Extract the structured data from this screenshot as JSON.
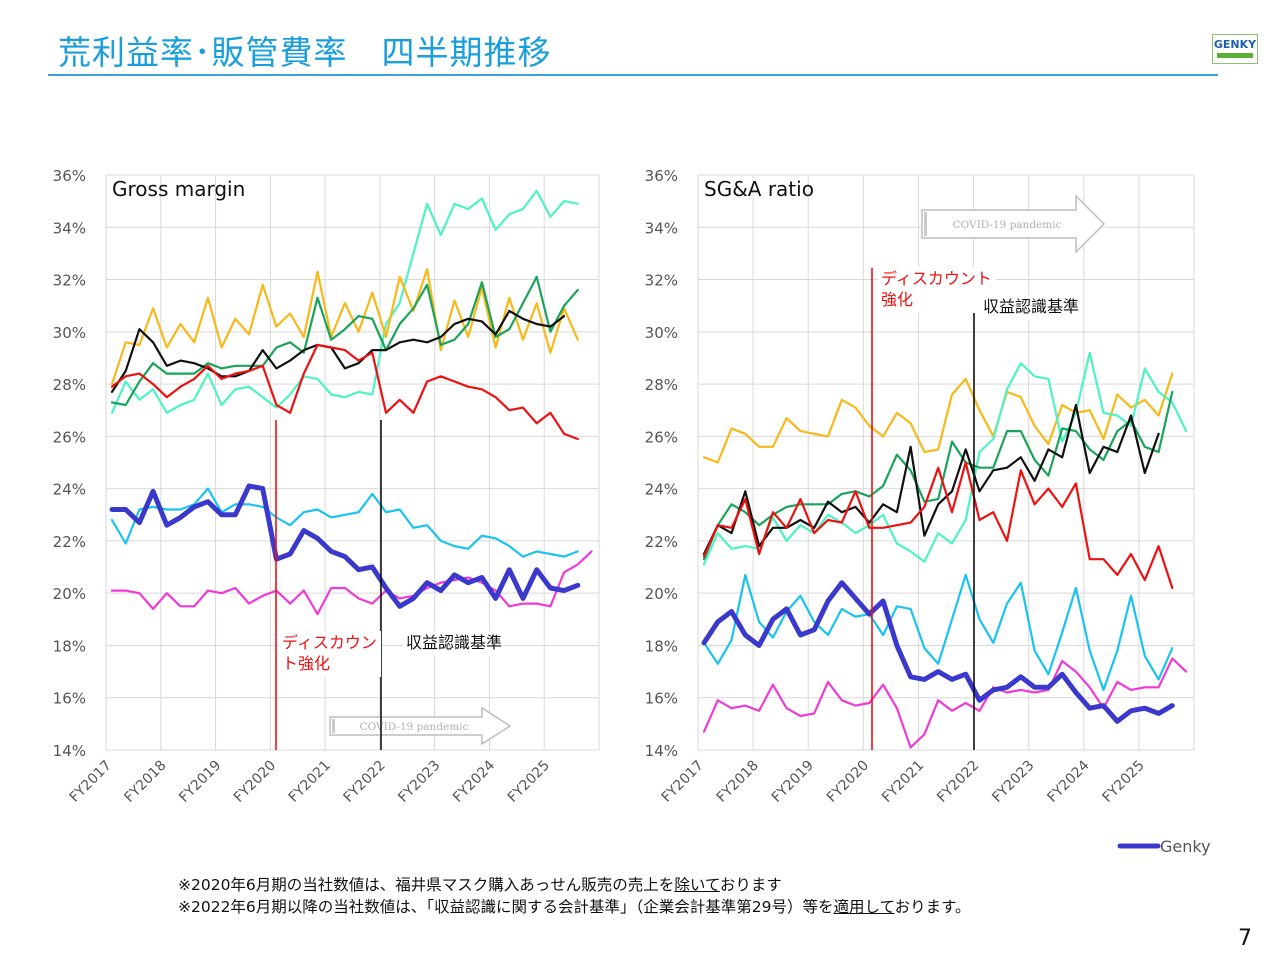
{
  "header": {
    "title": "荒利益率･販管費率　四半期推移",
    "logo_text": "GENKY"
  },
  "footer": {
    "note1": {
      "pre": "※2020年6月期の当社数値は、福井県マスク購入あっせん販売の売上を",
      "u": "除いて",
      "post": "おります"
    },
    "note2": {
      "pre": "※2022年6月期以降の当社数値は、「収益認識に関する会計基準」（企業会計基準第29号）等を",
      "u": "適用して",
      "post": "おります。"
    },
    "page_number": "7"
  },
  "legend": {
    "label": "Genky",
    "color": "#3a39cc"
  },
  "colors": {
    "genky": "#3a39cc",
    "cyan": "#18c3f2",
    "magenta": "#f03ad8",
    "red": "#ee1111",
    "black": "#111111",
    "green": "#19a45a",
    "yellow": "#f8b818",
    "mint": "#4df3c4"
  },
  "chart_data": [
    {
      "type": "line",
      "title": "Gross margin",
      "x_tick_labels": [
        "FY2017",
        "FY2018",
        "FY2019",
        "FY2020",
        "FY2021",
        "FY2022",
        "FY2023",
        "FY2024",
        "FY2025"
      ],
      "y_tick_labels": [
        "14%",
        "16%",
        "18%",
        "20%",
        "22%",
        "24%",
        "26%",
        "28%",
        "30%",
        "32%",
        "34%",
        "36%"
      ],
      "ylim": [
        14,
        36
      ],
      "annotations": [
        {
          "text": "ディスカウン\nト強化",
          "color": "#ee1111"
        },
        {
          "text": "収益認識基準",
          "color": "#111111"
        },
        {
          "text": "COVID-19 pandemic",
          "color": "#b0b0b0"
        }
      ],
      "series": [
        {
          "color_key": "mint",
          "values": [
            26.9,
            28.1,
            27.4,
            27.8,
            26.9,
            27.2,
            27.4,
            28.4,
            27.2,
            27.8,
            27.9,
            27.5,
            27.1,
            27.6,
            28.3,
            28.2,
            27.6,
            27.5,
            27.7,
            27.6,
            30.3,
            31.1,
            33.0,
            34.9,
            33.7,
            34.9,
            34.7,
            35.1,
            33.9,
            34.5,
            34.7,
            35.4,
            34.4,
            35.0,
            34.9
          ]
        },
        {
          "color_key": "yellow",
          "values": [
            28.0,
            29.6,
            29.5,
            30.9,
            29.4,
            30.3,
            29.6,
            31.3,
            29.4,
            30.5,
            29.9,
            31.8,
            30.2,
            30.7,
            29.8,
            32.3,
            29.8,
            31.1,
            30.0,
            31.5,
            29.8,
            32.1,
            30.8,
            32.4,
            29.3,
            31.2,
            29.8,
            31.7,
            29.4,
            31.3,
            29.7,
            31.1,
            29.2,
            30.9,
            29.7
          ]
        },
        {
          "color_key": "green",
          "values": [
            27.3,
            27.2,
            28.1,
            28.8,
            28.4,
            28.4,
            28.4,
            28.8,
            28.6,
            28.7,
            28.7,
            28.7,
            29.4,
            29.6,
            29.2,
            31.3,
            29.7,
            30.1,
            30.6,
            30.5,
            29.3,
            30.3,
            30.9,
            31.8,
            29.5,
            29.7,
            30.3,
            31.9,
            29.8,
            30.1,
            31.1,
            32.1,
            30.0,
            31.0,
            31.6
          ]
        },
        {
          "color_key": "black",
          "values": [
            27.7,
            28.5,
            30.1,
            29.6,
            28.7,
            28.9,
            28.8,
            28.6,
            28.3,
            28.3,
            28.5,
            29.3,
            28.6,
            28.9,
            29.3,
            29.5,
            29.4,
            28.6,
            28.8,
            29.3,
            29.3,
            29.6,
            29.7,
            29.6,
            29.8,
            30.3,
            30.5,
            30.4,
            29.9,
            30.8,
            30.5,
            30.3,
            30.2,
            30.6
          ]
        },
        {
          "color_key": "red",
          "values": [
            27.9,
            28.3,
            28.4,
            28.0,
            27.5,
            27.9,
            28.2,
            28.7,
            28.2,
            28.4,
            28.5,
            28.7,
            27.2,
            26.9,
            28.4,
            29.5,
            29.4,
            29.3,
            28.9,
            29.2,
            26.9,
            27.4,
            26.9,
            28.1,
            28.3,
            28.1,
            27.9,
            27.8,
            27.5,
            27.0,
            27.1,
            26.5,
            26.9,
            26.1,
            25.9
          ]
        },
        {
          "color_key": "cyan",
          "values": [
            22.8,
            21.9,
            23.2,
            23.3,
            23.2,
            23.2,
            23.4,
            24.0,
            23.1,
            23.4,
            23.4,
            23.3,
            22.9,
            22.6,
            23.1,
            23.2,
            22.9,
            23.0,
            23.1,
            23.8,
            23.1,
            23.2,
            22.5,
            22.6,
            22.0,
            21.8,
            21.7,
            22.2,
            22.1,
            21.8,
            21.4,
            21.6,
            21.5,
            21.4,
            21.6
          ]
        },
        {
          "color_key": "magenta",
          "values": [
            20.1,
            20.1,
            20.0,
            19.4,
            20.0,
            19.5,
            19.5,
            20.1,
            20.0,
            20.2,
            19.6,
            19.9,
            20.1,
            19.6,
            20.1,
            19.2,
            20.2,
            20.2,
            19.8,
            19.6,
            20.1,
            19.8,
            19.9,
            20.2,
            20.4,
            20.5,
            20.6,
            20.4,
            20.1,
            19.5,
            19.6,
            19.6,
            19.5,
            20.8,
            21.1,
            21.6
          ]
        },
        {
          "color_key": "genky",
          "name_key": "legend",
          "values": [
            23.2,
            23.2,
            22.7,
            23.9,
            22.6,
            22.9,
            23.3,
            23.5,
            23.0,
            23.0,
            24.1,
            24.0,
            21.3,
            21.5,
            22.4,
            22.1,
            21.6,
            21.4,
            20.9,
            21.0,
            20.2,
            19.5,
            19.8,
            20.4,
            20.1,
            20.7,
            20.4,
            20.6,
            19.8,
            20.9,
            19.8,
            20.9,
            20.2,
            20.1,
            20.3
          ]
        }
      ]
    },
    {
      "type": "line",
      "title": "SG&A ratio",
      "x_tick_labels": [
        "FY2017",
        "FY2018",
        "FY2019",
        "FY2020",
        "FY2021",
        "FY2022",
        "FY2023",
        "FY2024",
        "FY2025"
      ],
      "y_tick_labels": [
        "14%",
        "16%",
        "18%",
        "20%",
        "22%",
        "24%",
        "26%",
        "28%",
        "30%",
        "32%",
        "34%",
        "36%"
      ],
      "ylim": [
        14,
        36
      ],
      "annotations": [
        {
          "text": "ディスカウント\n強化",
          "color": "#ee1111"
        },
        {
          "text": "収益認識基準",
          "color": "#111111"
        },
        {
          "text": "COVID-19 pandemic",
          "color": "#b0b0b0"
        }
      ],
      "series": [
        {
          "color_key": "yellow",
          "values": [
            25.2,
            25.0,
            26.3,
            26.1,
            25.6,
            25.6,
            26.7,
            26.2,
            26.1,
            26.0,
            27.4,
            27.1,
            26.4,
            26.0,
            26.9,
            26.5,
            25.4,
            25.5,
            27.6,
            28.2,
            27.0,
            26.0,
            27.7,
            27.5,
            26.4,
            25.7,
            27.2,
            26.9,
            27.0,
            25.9,
            27.6,
            27.1,
            27.4,
            26.8,
            28.4
          ]
        },
        {
          "color_key": "mint",
          "values": [
            21.1,
            22.3,
            21.7,
            21.8,
            21.7,
            22.9,
            22.0,
            22.6,
            22.3,
            23.0,
            22.7,
            22.3,
            22.6,
            23.0,
            21.9,
            21.6,
            21.2,
            22.3,
            21.9,
            22.8,
            25.4,
            25.9,
            27.8,
            28.8,
            28.3,
            28.2,
            25.8,
            26.9,
            29.2,
            26.9,
            26.8,
            26.4,
            28.6,
            27.7,
            27.3,
            26.2
          ]
        },
        {
          "color_key": "green",
          "values": [
            21.3,
            22.6,
            23.4,
            23.1,
            22.6,
            23.0,
            23.3,
            23.4,
            23.4,
            23.4,
            23.8,
            23.9,
            23.7,
            24.1,
            25.3,
            24.7,
            23.5,
            23.6,
            25.8,
            25.0,
            24.8,
            24.8,
            26.2,
            26.2,
            25.1,
            24.5,
            26.3,
            26.2,
            25.5,
            25.1,
            26.2,
            26.6,
            25.6,
            25.4,
            27.7
          ]
        },
        {
          "color_key": "black",
          "values": [
            21.5,
            22.6,
            22.3,
            23.9,
            21.8,
            22.5,
            22.5,
            22.8,
            22.5,
            23.5,
            23.1,
            23.3,
            22.7,
            23.4,
            23.1,
            25.6,
            22.2,
            23.4,
            23.9,
            25.5,
            23.9,
            24.7,
            24.8,
            25.2,
            24.3,
            25.5,
            25.2,
            27.2,
            24.6,
            25.6,
            25.4,
            26.8,
            24.6,
            26.1
          ]
        },
        {
          "color_key": "red",
          "values": [
            21.4,
            22.6,
            22.5,
            23.6,
            21.5,
            23.1,
            22.5,
            23.6,
            22.3,
            22.8,
            22.7,
            23.9,
            22.5,
            22.5,
            22.6,
            22.7,
            23.3,
            24.8,
            23.1,
            25.0,
            22.8,
            23.1,
            22.0,
            24.7,
            23.4,
            24.0,
            23.3,
            24.2,
            21.3,
            21.3,
            20.7,
            21.5,
            20.5,
            21.8,
            20.2
          ]
        },
        {
          "color_key": "cyan",
          "values": [
            18.1,
            17.3,
            18.2,
            20.7,
            18.9,
            18.3,
            19.3,
            19.9,
            18.9,
            18.4,
            19.4,
            19.1,
            19.2,
            18.4,
            19.5,
            19.4,
            17.9,
            17.3,
            19.0,
            20.7,
            19.0,
            18.1,
            19.6,
            20.4,
            17.8,
            16.9,
            18.5,
            20.2,
            17.8,
            16.3,
            17.8,
            19.9,
            17.6,
            16.7,
            17.9
          ]
        },
        {
          "color_key": "magenta",
          "values": [
            14.7,
            15.9,
            15.6,
            15.7,
            15.5,
            16.5,
            15.6,
            15.3,
            15.4,
            16.6,
            15.9,
            15.7,
            15.8,
            16.5,
            15.6,
            14.1,
            14.6,
            15.9,
            15.5,
            15.8,
            15.5,
            16.4,
            16.2,
            16.3,
            16.2,
            16.3,
            17.4,
            17.0,
            16.4,
            15.6,
            16.6,
            16.3,
            16.4,
            16.4,
            17.5,
            17.0
          ]
        },
        {
          "color_key": "genky",
          "name_key": "legend",
          "values": [
            18.1,
            18.9,
            19.3,
            18.4,
            18.0,
            19.0,
            19.4,
            18.4,
            18.6,
            19.7,
            20.4,
            19.8,
            19.2,
            19.7,
            18.0,
            16.8,
            16.7,
            17.0,
            16.7,
            16.9,
            15.9,
            16.3,
            16.4,
            16.8,
            16.4,
            16.4,
            16.9,
            16.2,
            15.6,
            15.7,
            15.1,
            15.5,
            15.6,
            15.4,
            15.7
          ]
        }
      ]
    }
  ]
}
